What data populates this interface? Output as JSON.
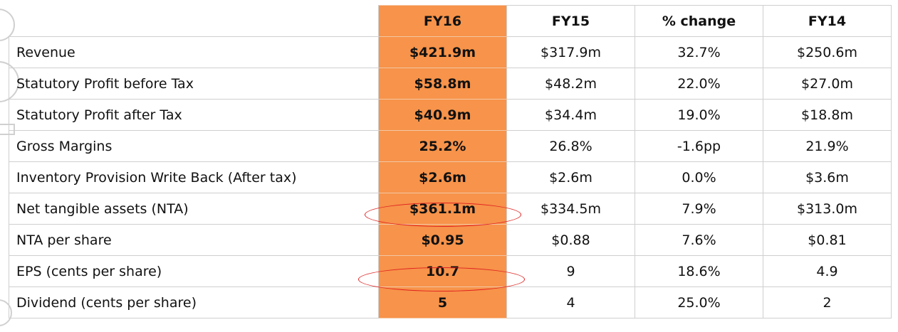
{
  "table": {
    "headers": [
      "FY16",
      "FY15",
      "% change",
      "FY14"
    ],
    "rows": [
      {
        "label": "Revenue",
        "values": [
          "$421.9m",
          "$317.9m",
          "32.7%",
          "$250.6m"
        ]
      },
      {
        "label": "Statutory Profit before Tax",
        "values": [
          "$58.8m",
          "$48.2m",
          "22.0%",
          "$27.0m"
        ]
      },
      {
        "label": "Statutory Profit after Tax",
        "values": [
          "$40.9m",
          "$34.4m",
          "19.0%",
          "$18.8m"
        ]
      },
      {
        "label": "Gross Margins",
        "values": [
          "25.2%",
          "26.8%",
          "-1.6pp",
          "21.9%"
        ]
      },
      {
        "label": "Inventory Provision Write Back (After tax)",
        "values": [
          "$2.6m",
          "$2.6m",
          "0.0%",
          "$3.6m"
        ]
      },
      {
        "label": "Net tangible assets (NTA)",
        "values": [
          "$361.1m",
          "$334.5m",
          "7.9%",
          "$313.0m"
        ]
      },
      {
        "label": "NTA per share",
        "values": [
          "$0.95",
          "$0.88",
          "7.6%",
          "$0.81"
        ]
      },
      {
        "label": "EPS (cents per share)",
        "values": [
          "10.7",
          "9",
          "18.6%",
          "4.9"
        ]
      },
      {
        "label": "Dividend (cents per share)",
        "values": [
          "5",
          "4",
          "25.0%",
          "2"
        ]
      }
    ],
    "highlighted_rows": [
      "Net tangible assets (NTA)",
      "EPS (cents per share)"
    ],
    "colors": {
      "fy16_fill": "#F7934A",
      "highlight": "#e02020",
      "grid": "#cfcfcf"
    }
  }
}
